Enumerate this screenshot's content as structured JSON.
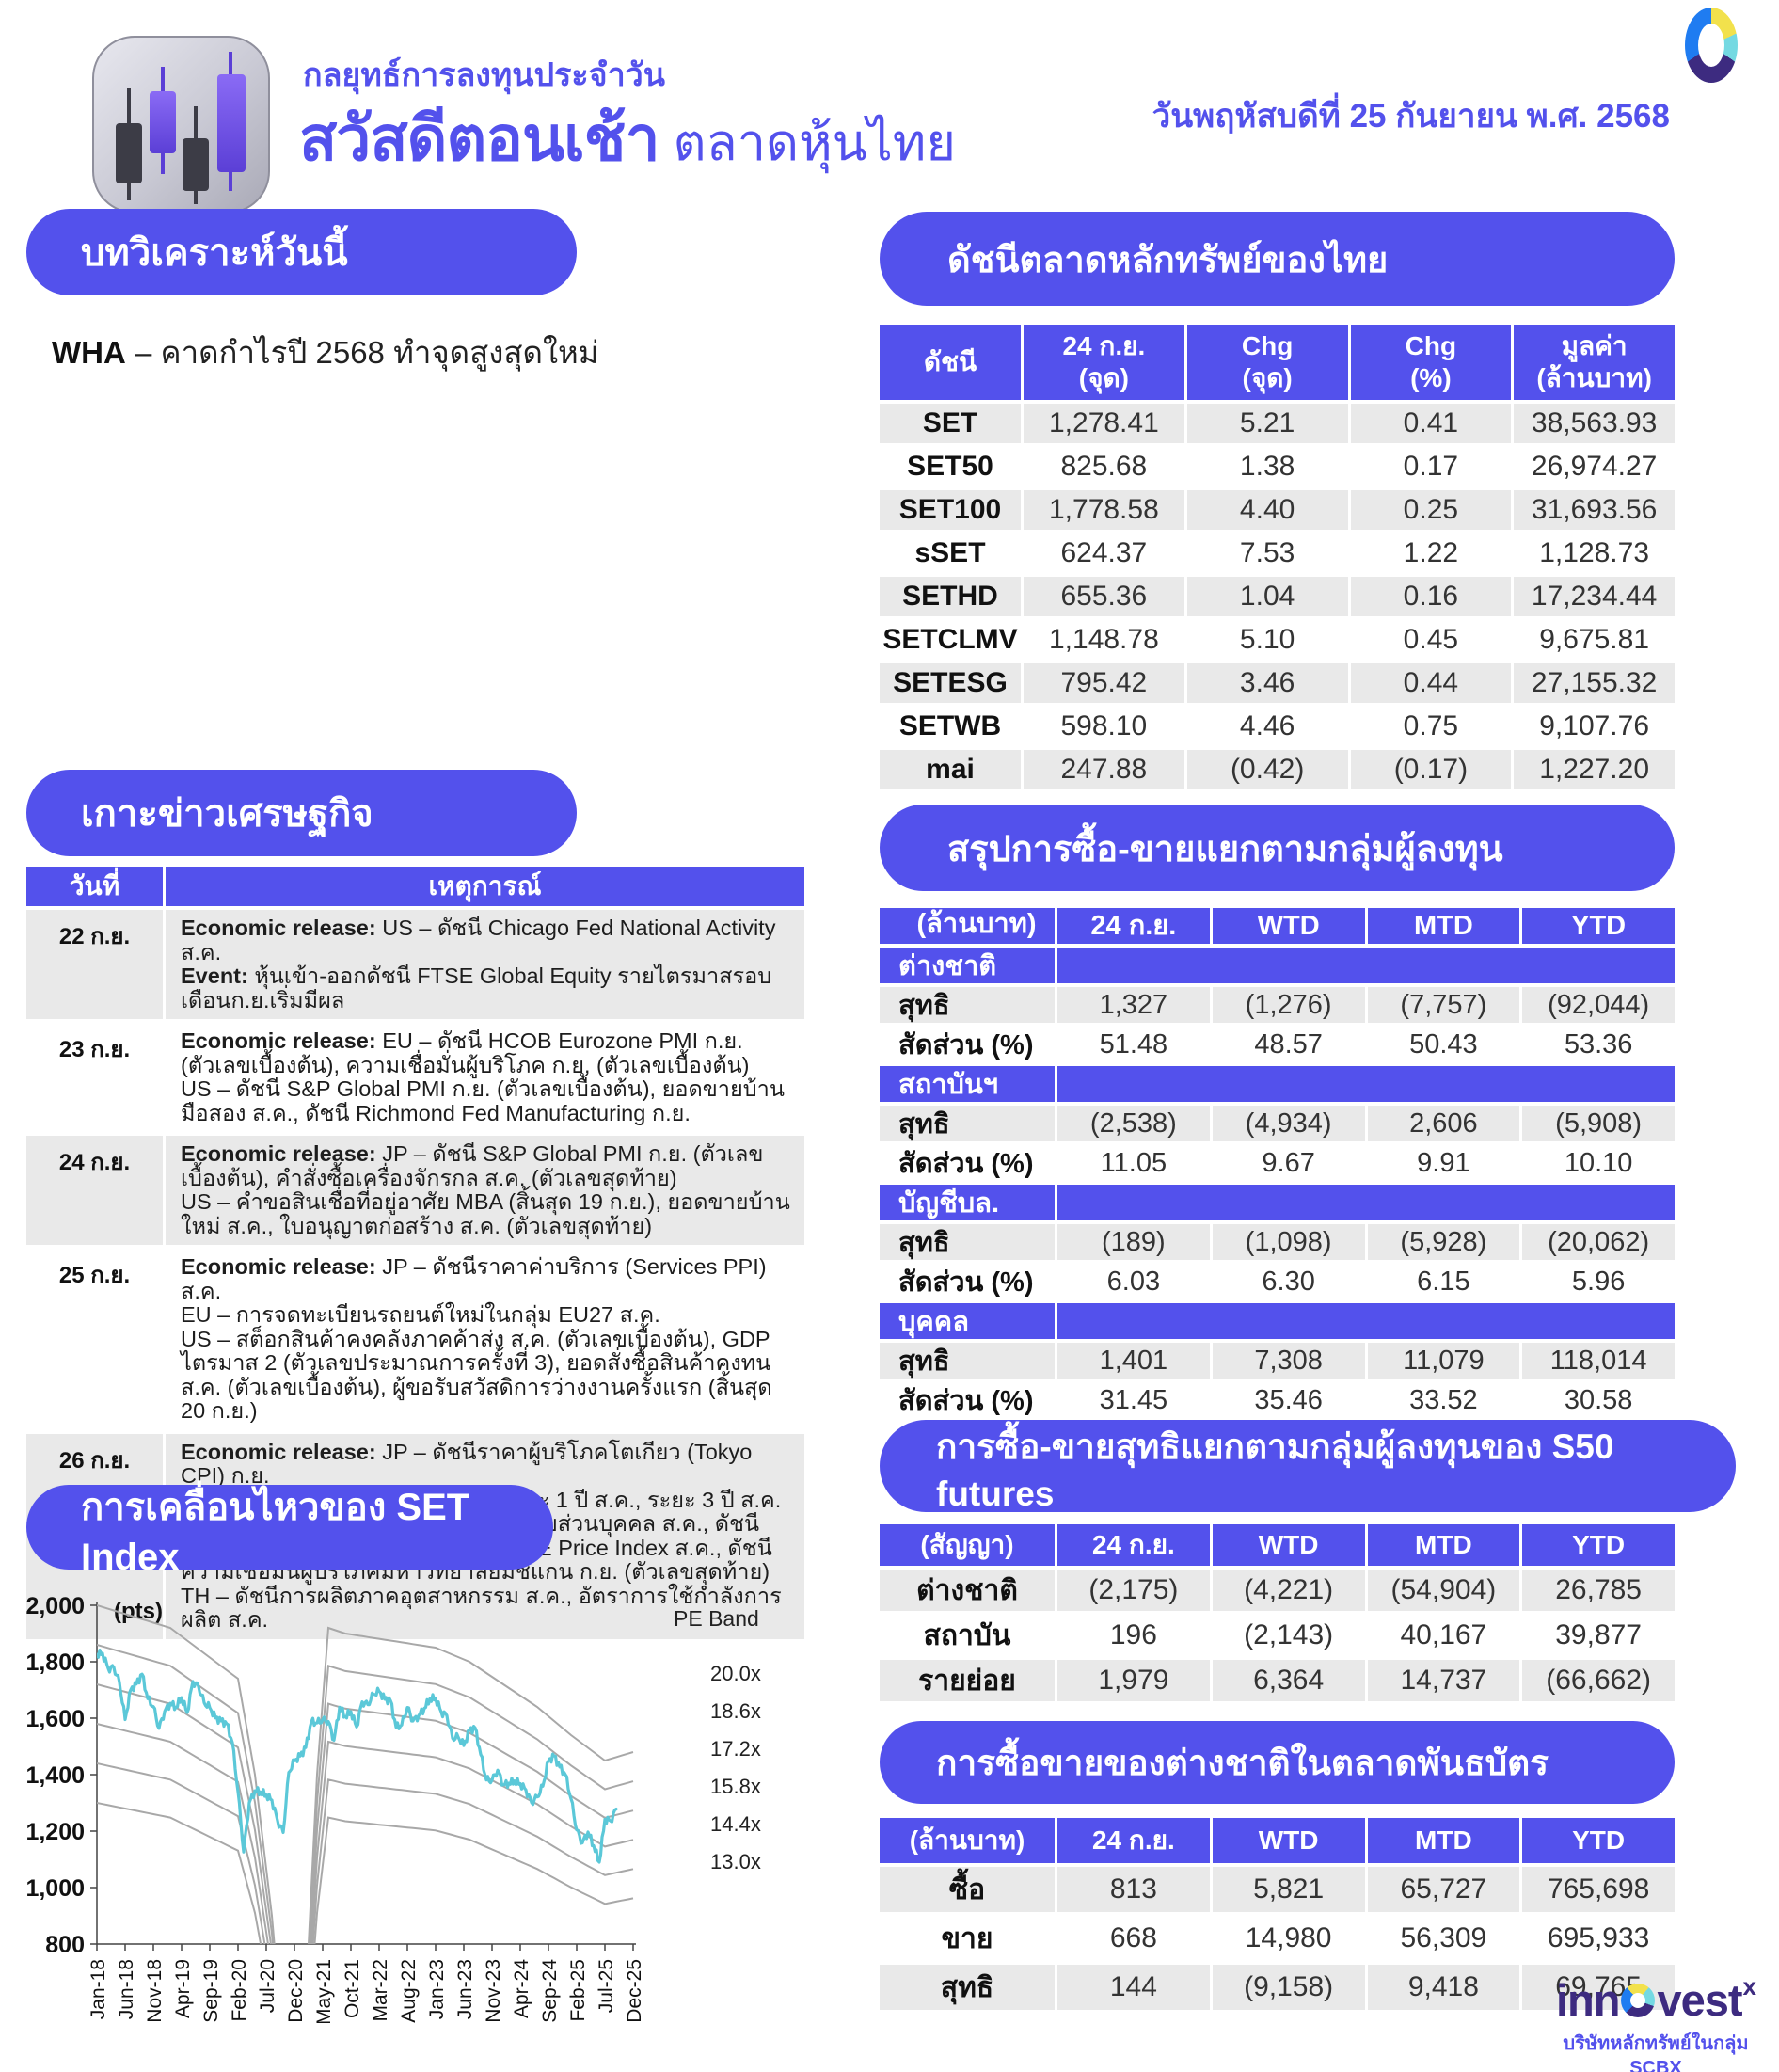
{
  "header": {
    "kicker": "กลยุทธ์การลงทุนประจำวัน",
    "title": "สวัสดีตอนเช้า",
    "subtitle": " ตลาดหุ้นไทย",
    "date": "วันพฤหัสบดีที่ 25 กันยายน พ.ศ. 2568"
  },
  "analysis": {
    "section_title": "บทวิเคราะห์วันนี้",
    "ticker": "WHA",
    "text": " – คาดกำไรปี 2568 ทำจุดสูงสุดใหม่"
  },
  "news": {
    "section_title": "เกาะข่าวเศรษฐกิจ",
    "col_date": "วันที่",
    "col_event": "เหตุการณ์",
    "rows": [
      {
        "date": "22 ก.ย.",
        "paragraphs": [
          [
            "Economic release:",
            " US – ดัชนี Chicago Fed National Activity ส.ค."
          ],
          [
            "Event:",
            " หุ้นเข้า-ออกดัชนี FTSE Global Equity รายไตรมาสรอบเดือนก.ย.เริ่มมีผล"
          ]
        ]
      },
      {
        "date": "23 ก.ย.",
        "paragraphs": [
          [
            "Economic release:",
            " EU – ดัชนี HCOB Eurozone PMI ก.ย. (ตัวเลขเบื้องต้น), ความเชื่อมั่นผู้บริโภค ก.ย. (ตัวเลขเบื้องต้น)"
          ],
          [
            "",
            "US – ดัชนี S&P Global PMI ก.ย. (ตัวเลขเบื้องต้น), ยอดขายบ้านมือสอง ส.ค., ดัชนี Richmond Fed Manufacturing ก.ย."
          ]
        ]
      },
      {
        "date": "24 ก.ย.",
        "paragraphs": [
          [
            "Economic release:",
            " JP – ดัชนี S&P Global PMI ก.ย. (ตัวเลขเบื้องต้น), คำสั่งซื้อเครื่องจักรกล ส.ค. (ตัวเลขสุดท้าย)"
          ],
          [
            "",
            "US – คำขอสินเชื่อที่อยู่อาศัย MBA (สิ้นสุด 19 ก.ย.), ยอดขายบ้านใหม่ ส.ค., ใบอนุญาตก่อสร้าง ส.ค. (ตัวเลขสุดท้าย)"
          ]
        ]
      },
      {
        "date": "25 ก.ย.",
        "paragraphs": [
          [
            "Economic release:",
            " JP – ดัชนีราคาค่าบริการ (Services PPI) ส.ค."
          ],
          [
            "",
            "EU – การจดทะเบียนรถยนต์ใหม่ในกลุ่ม EU27 ส.ค."
          ],
          [
            "",
            "US – สต็อกสินค้าคงคลังภาคค้าส่ง ส.ค. (ตัวเลขเบื้องต้น), GDP ไตรมาส 2 (ตัวเลขประมาณการครั้งที่ 3), ยอดสั่งซื้อสินค้าคงทน ส.ค. (ตัวเลขเบื้องต้น), ผู้ขอรับสวัสดิการว่างงานครั้งแรก (สิ้นสุด 20 ก.ย.)"
          ]
        ]
      },
      {
        "date": "26 ก.ย.",
        "paragraphs": [
          [
            "Economic release:",
            " JP – ดัชนีราคาผู้บริโภคโตเกียว (Tokyo CPI) ก.ย."
          ],
          [
            "",
            "EU – การคาดการณ์เงินเฟ้อ ECB ระยะ 1 ปี ส.ค., ระยะ 3 ปี ส.ค."
          ],
          [
            "",
            "US – รายได้ส่วนบุคคล ส.ค., การใช้จ่ายส่วนบุคคล ส.ค., ดัชนี PCE Price Index ส.ค., ดัชนี Core PCE Price Index ส.ค., ดัชนีความเชื่อมั่นผู้บริโภคมหาวิทยาลัยมิชิแกน ก.ย. (ตัวเลขสุดท้าย)"
          ],
          [
            "",
            "TH – ดัชนีการผลิตภาคอุตสาหกรรม ส.ค., อัตราการใช้กำลังการผลิต ส.ค."
          ]
        ]
      }
    ]
  },
  "index_table": {
    "section_title": "ดัชนีตลาดหลักทรัพย์ของไทย",
    "headers": [
      [
        "ดัชนี",
        ""
      ],
      [
        "24 ก.ย.",
        "(จุด)"
      ],
      [
        "Chg",
        "(จุด)"
      ],
      [
        "Chg",
        "(%)"
      ],
      [
        "มูลค่า",
        "(ล้านบาท)"
      ]
    ],
    "rows": [
      [
        "SET",
        "1,278.41",
        "5.21",
        "0.41",
        "38,563.93"
      ],
      [
        "SET50",
        "825.68",
        "1.38",
        "0.17",
        "26,974.27"
      ],
      [
        "SET100",
        "1,778.58",
        "4.40",
        "0.25",
        "31,693.56"
      ],
      [
        "sSET",
        "624.37",
        "7.53",
        "1.22",
        "1,128.73"
      ],
      [
        "SETHD",
        "655.36",
        "1.04",
        "0.16",
        "17,234.44"
      ],
      [
        "SETCLMV",
        "1,148.78",
        "5.10",
        "0.45",
        "9,675.81"
      ],
      [
        "SETESG",
        "795.42",
        "3.46",
        "0.44",
        "27,155.32"
      ],
      [
        "SETWB",
        "598.10",
        "4.46",
        "0.75",
        "9,107.76"
      ],
      [
        "mai",
        "247.88",
        "(0.42)",
        "(0.17)",
        "1,227.20"
      ]
    ]
  },
  "investor_table": {
    "section_title": "สรุปการซื้อ-ขายแยกตามกลุ่มผู้ลงทุน",
    "unit_label": "(ล้านบาท)",
    "headers": [
      "24 ก.ย.",
      "WTD",
      "MTD",
      "YTD"
    ],
    "row_labels": [
      "สุทธิ",
      "สัดส่วน (%)"
    ],
    "groups": [
      {
        "name": "ต่างชาติ",
        "net": [
          "1,327",
          "(1,276)",
          "(7,757)",
          "(92,044)"
        ],
        "share": [
          "51.48",
          "48.57",
          "50.43",
          "53.36"
        ]
      },
      {
        "name": "สถาบันฯ",
        "net": [
          "(2,538)",
          "(4,934)",
          "2,606",
          "(5,908)"
        ],
        "share": [
          "11.05",
          "9.67",
          "9.91",
          "10.10"
        ]
      },
      {
        "name": "บัญชีบล.",
        "net": [
          "(189)",
          "(1,098)",
          "(5,928)",
          "(20,062)"
        ],
        "share": [
          "6.03",
          "6.30",
          "6.15",
          "5.96"
        ]
      },
      {
        "name": "บุคคล",
        "net": [
          "1,401",
          "7,308",
          "11,079",
          "118,014"
        ],
        "share": [
          "31.45",
          "35.46",
          "33.52",
          "30.58"
        ]
      }
    ]
  },
  "s50_table": {
    "section_title": "การซื้อ-ขายสุทธิแยกตามกลุ่มผู้ลงทุนของ S50 futures",
    "unit_label": "(สัญญา)",
    "headers": [
      "24 ก.ย.",
      "WTD",
      "MTD",
      "YTD"
    ],
    "rows": [
      [
        "ต่างชาติ",
        "(2,175)",
        "(4,221)",
        "(54,904)",
        "26,785"
      ],
      [
        "สถาบัน",
        "196",
        "(2,143)",
        "40,167",
        "39,877"
      ],
      [
        "รายย่อย",
        "1,979",
        "6,364",
        "14,737",
        "(66,662)"
      ]
    ]
  },
  "bond_table": {
    "section_title": "การซื้อขายของต่างชาติในตลาดพันธบัตร",
    "unit_label": "(ล้านบาท)",
    "headers": [
      "24 ก.ย.",
      "WTD",
      "MTD",
      "YTD"
    ],
    "rows": [
      [
        "ซื้อ",
        "813",
        "5,821",
        "65,727",
        "765,698"
      ],
      [
        "ขาย",
        "668",
        "14,980",
        "56,309",
        "695,933"
      ],
      [
        "สุทธิ",
        "144",
        "(9,158)",
        "9,418",
        "69,765"
      ]
    ]
  },
  "chart": {
    "section_title": "การเคลื่อนไหวของ SET Index",
    "y_unit": "(pts)",
    "pe_band_label": "PE Band"
  },
  "chart_data": {
    "type": "line",
    "title": "การเคลื่อนไหวของ SET Index",
    "ylabel": "(pts)",
    "ylim": [
      800,
      2000
    ],
    "yticks": [
      800,
      1000,
      1200,
      1400,
      1600,
      1800,
      2000
    ],
    "x_tick_labels": [
      "Jan-18",
      "Jun-18",
      "Nov-18",
      "Apr-19",
      "Sep-19",
      "Feb-20",
      "Jul-20",
      "Dec-20",
      "May-21",
      "Oct-21",
      "Mar-22",
      "Aug-22",
      "Jan-23",
      "Jun-23",
      "Nov-23",
      "Apr-24",
      "Sep-24",
      "Feb-25",
      "Jul-25",
      "Dec-25"
    ],
    "x_months_total": 96,
    "series": [
      {
        "name": "SET Index",
        "color": "#5bc8d8",
        "x_start": "Jan-18",
        "freq": "monthly",
        "values": [
          1826,
          1830,
          1776,
          1780,
          1726,
          1595,
          1701,
          1721,
          1756,
          1669,
          1641,
          1564,
          1624,
          1653,
          1639,
          1673,
          1620,
          1730,
          1712,
          1655,
          1637,
          1601,
          1590,
          1580,
          1514,
          1340,
          1126,
          1301,
          1343,
          1339,
          1328,
          1310,
          1237,
          1195,
          1408,
          1449,
          1466,
          1496,
          1587,
          1583,
          1594,
          1588,
          1522,
          1639,
          1606,
          1623,
          1569,
          1658,
          1648,
          1685,
          1695,
          1667,
          1663,
          1568,
          1576,
          1638,
          1590,
          1609,
          1635,
          1669,
          1671,
          1622,
          1609,
          1529,
          1533,
          1503,
          1556,
          1566,
          1471,
          1381,
          1380,
          1416,
          1364,
          1370,
          1378,
          1368,
          1346,
          1301,
          1321,
          1359,
          1449,
          1466,
          1427,
          1400,
          1314,
          1204,
          1158,
          1197,
          1149,
          1090,
          1242,
          1236,
          1278
        ]
      }
    ],
    "pe_bands": {
      "color": "#a8a8a8",
      "multiples": [
        20.0,
        18.6,
        17.2,
        15.8,
        14.4,
        13.0
      ],
      "labels": [
        "20.0x",
        "18.6x",
        "17.2x",
        "15.8x",
        "14.4x",
        "13.0x"
      ],
      "eps_points": [
        [
          0,
          100
        ],
        [
          13,
          96
        ],
        [
          25,
          87
        ],
        [
          28,
          70
        ],
        [
          31,
          45
        ],
        [
          33,
          22
        ],
        [
          35,
          11
        ],
        [
          36,
          10
        ],
        [
          37,
          30
        ],
        [
          39,
          70
        ],
        [
          41,
          96
        ],
        [
          44,
          95
        ],
        [
          60,
          92.5
        ],
        [
          66,
          90
        ],
        [
          72,
          86
        ],
        [
          78,
          82
        ],
        [
          84,
          77
        ],
        [
          90,
          72.5
        ],
        [
          95,
          74
        ]
      ]
    },
    "legend_position": "right",
    "grid": false
  },
  "footer": {
    "logo_text_left": "inn",
    "logo_text_right": "vest",
    "logo_sup": "x",
    "tagline": "บริษัทหลักทรัพย์ในกลุ่ม SCBX"
  },
  "colors": {
    "accent": "#5351ec",
    "row_gray": "#e9e9e9",
    "set_line": "#5bc8d8",
    "pe_band_gray": "#a8a8a8",
    "logo_dark": "#3d2b80"
  }
}
